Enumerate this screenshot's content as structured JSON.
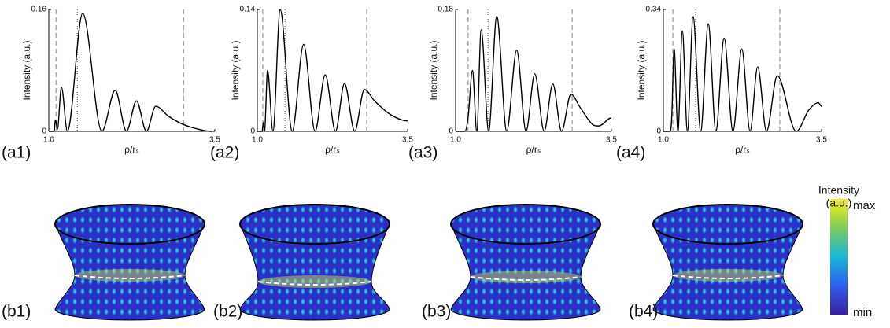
{
  "chart_data": [
    {
      "type": "line",
      "panel_label": "(a1)",
      "xlabel": "ρ/rₛ",
      "ylabel": "Intensity (a.u.)",
      "xlim": [
        1.0,
        3.5
      ],
      "xticks": [
        {
          "value": 1,
          "label": "1.0"
        },
        3.5
      ],
      "ylim": [
        0,
        0.16
      ],
      "yticks": [
        0,
        0.16
      ],
      "dashed_lines": [
        1.11,
        3.03
      ],
      "dotted_lines": [
        1.43
      ],
      "color": "#000000",
      "x": [
        1.0,
        1.08,
        1.1,
        1.13,
        1.19,
        1.28,
        1.51,
        1.8,
        2.0,
        2.17,
        2.32,
        2.47,
        2.61,
        2.8,
        3.0,
        3.2,
        3.45
      ],
      "values": [
        0,
        0,
        0.015,
        0.003,
        0.058,
        0,
        0.155,
        0,
        0.054,
        0,
        0.04,
        0,
        0.033,
        0.02,
        0.01,
        0.004,
        0
      ]
    },
    {
      "type": "line",
      "panel_label": "(a2)",
      "xlabel": "ρ/rₛ",
      "ylabel": "Intensity (a.u.)",
      "xlim": [
        1.0,
        3.5
      ],
      "xticks": [
        {
          "value": 1,
          "label": "1.0"
        },
        3.5
      ],
      "ylim": [
        0,
        0.14
      ],
      "yticks": [
        0,
        0.14
      ],
      "dashed_lines": [
        1.09,
        2.82
      ],
      "dotted_lines": [
        1.46
      ],
      "color": "#000000",
      "x": [
        1.0,
        1.08,
        1.1,
        1.12,
        1.17,
        1.26,
        1.38,
        1.58,
        1.77,
        1.96,
        2.13,
        2.3,
        2.45,
        2.62,
        2.78,
        2.95,
        3.2,
        3.5
      ],
      "values": [
        0,
        0,
        0.01,
        0,
        0.07,
        0,
        0.14,
        0,
        0.1,
        0,
        0.065,
        0,
        0.055,
        0,
        0.048,
        0.035,
        0.02,
        0.012
      ]
    },
    {
      "type": "line",
      "panel_label": "(a3)",
      "xlabel": "ρ/rₛ",
      "ylabel": "Intensity (a.u.)",
      "xlim": [
        1.0,
        3.5
      ],
      "xticks": [
        {
          "value": 1,
          "label": "1.0"
        },
        3.5
      ],
      "ylim": [
        0,
        0.18
      ],
      "yticks": [
        0,
        0.18
      ],
      "dashed_lines": [
        1.2,
        2.87
      ],
      "dotted_lines": [
        1.52
      ],
      "color": "#000000",
      "x": [
        1.0,
        1.15,
        1.2,
        1.27,
        1.34,
        1.41,
        1.53,
        1.66,
        1.82,
        1.98,
        2.13,
        2.27,
        2.42,
        2.56,
        2.7,
        2.85,
        3.0,
        3.2,
        3.3,
        3.5
      ],
      "values": [
        0,
        0,
        0.02,
        0.09,
        0,
        0.15,
        0,
        0.17,
        0,
        0.12,
        0,
        0.085,
        0,
        0.07,
        0,
        0.055,
        0.035,
        0.01,
        0.008,
        0.02
      ]
    },
    {
      "type": "line",
      "panel_label": "(a4)",
      "xlabel": "ρ/rₛ",
      "ylabel": "Intensity (a.u.)",
      "xlim": [
        1.0,
        3.5
      ],
      "xticks": [
        {
          "value": 1,
          "label": "1.0"
        },
        3.5
      ],
      "ylim": [
        0,
        0.34
      ],
      "yticks": [
        0,
        0.34
      ],
      "dashed_lines": [
        1.15,
        2.84
      ],
      "dotted_lines": [
        1.51
      ],
      "color": "#000000",
      "x": [
        1.0,
        1.1,
        1.13,
        1.17,
        1.23,
        1.3,
        1.38,
        1.47,
        1.59,
        1.71,
        1.83,
        1.96,
        2.1,
        2.24,
        2.37,
        2.49,
        2.63,
        2.8,
        3.1,
        3.3,
        3.45,
        3.5
      ],
      "values": [
        0,
        0,
        0.03,
        0.23,
        0,
        0.28,
        0,
        0.32,
        0,
        0.3,
        0,
        0.26,
        0,
        0.23,
        0,
        0.18,
        0,
        0.155,
        0,
        0.06,
        0.08,
        0.07
      ]
    }
  ],
  "bottom_panels": [
    "(b1)",
    "(b2)",
    "(b3)",
    "(b4)"
  ],
  "colorbar": {
    "title": [
      "Intensity",
      "(a.u.)"
    ],
    "max": "max",
    "min": "min"
  }
}
